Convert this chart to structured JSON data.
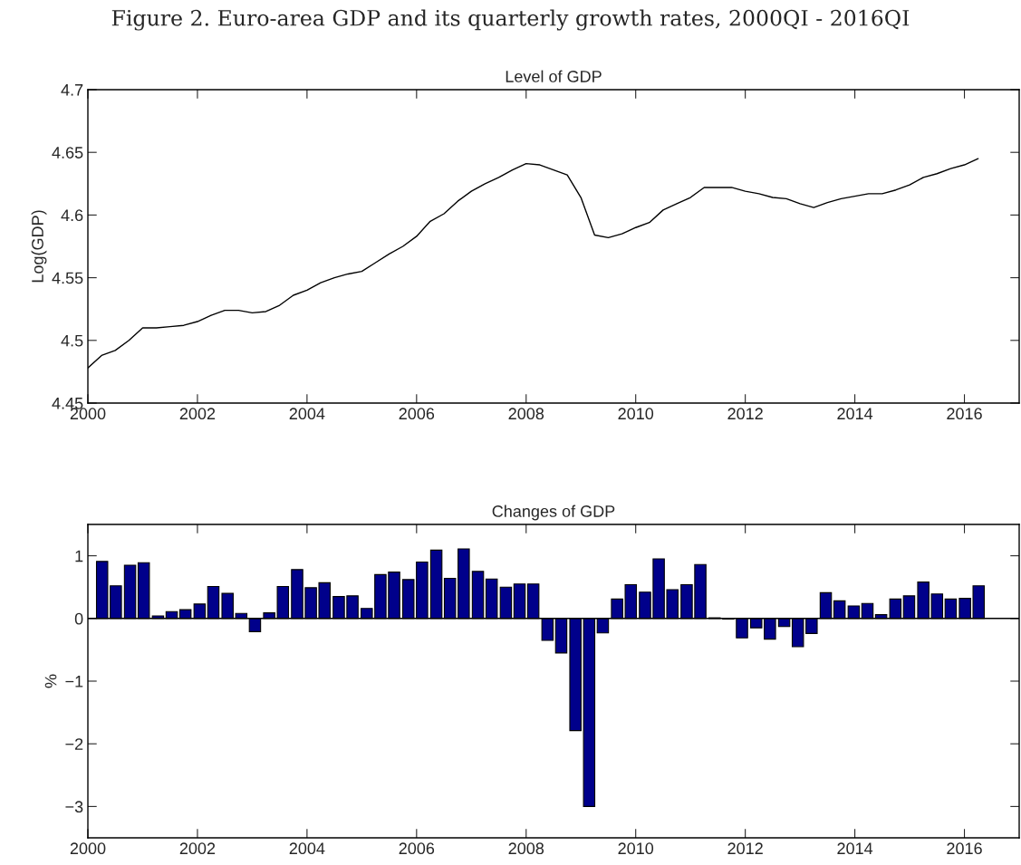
{
  "chart_data": [
    {
      "type": "line",
      "title": "Level of GDP",
      "ylabel": "Log(GDP)",
      "annotations": [
        "Figure 2. Euro-area GDP and its quarterly growth rates, 2000QI - 2016QI"
      ],
      "x": [
        2000,
        2000.25,
        2000.5,
        2000.75,
        2001,
        2001.25,
        2001.5,
        2001.75,
        2002,
        2002.25,
        2002.5,
        2002.75,
        2003,
        2003.25,
        2003.5,
        2003.75,
        2004,
        2004.25,
        2004.5,
        2004.75,
        2005,
        2005.25,
        2005.5,
        2005.75,
        2006,
        2006.25,
        2006.5,
        2006.75,
        2007,
        2007.25,
        2007.5,
        2007.75,
        2008,
        2008.25,
        2008.5,
        2008.75,
        2009,
        2009.25,
        2009.5,
        2009.75,
        2010,
        2010.25,
        2010.5,
        2010.75,
        2011,
        2011.25,
        2011.5,
        2011.75,
        2012,
        2012.25,
        2012.5,
        2012.75,
        2013,
        2013.25,
        2013.5,
        2013.75,
        2014,
        2014.25,
        2014.5,
        2014.75,
        2015,
        2015.25,
        2015.5,
        2015.75,
        2016,
        2016.25
      ],
      "series": [
        {
          "color": "#000000",
          "values": [
            4.478,
            4.488,
            4.492,
            4.5,
            4.51,
            4.51,
            4.511,
            4.512,
            4.515,
            4.52,
            4.524,
            4.524,
            4.522,
            4.523,
            4.528,
            4.536,
            4.54,
            4.546,
            4.55,
            4.553,
            4.555,
            4.562,
            4.569,
            4.575,
            4.583,
            4.595,
            4.601,
            4.611,
            4.619,
            4.625,
            4.63,
            4.636,
            4.641,
            4.64,
            4.636,
            4.632,
            4.614,
            4.584,
            4.582,
            4.585,
            4.59,
            4.594,
            4.604,
            4.609,
            4.614,
            4.622,
            4.622,
            4.622,
            4.619,
            4.617,
            4.614,
            4.613,
            4.609,
            4.606,
            4.61,
            4.613,
            4.615,
            4.617,
            4.617,
            4.62,
            4.624,
            4.63,
            4.633,
            4.637,
            4.64,
            4.645
          ]
        }
      ],
      "xlim": [
        2000,
        2017
      ],
      "xticks": [
        2000,
        2002,
        2004,
        2006,
        2008,
        2010,
        2012,
        2014,
        2016
      ],
      "ylim": [
        4.45,
        4.7
      ],
      "yticks": [
        4.45,
        4.5,
        4.55,
        4.6,
        4.65,
        4.7
      ],
      "grid": false,
      "legend": false
    },
    {
      "type": "bar",
      "title": "Changes of GDP",
      "ylabel": "%",
      "x": [
        2000.26,
        2000.51,
        2000.77,
        2001.02,
        2001.28,
        2001.53,
        2001.78,
        2002.04,
        2002.29,
        2002.55,
        2002.8,
        2003.05,
        2003.31,
        2003.56,
        2003.82,
        2004.07,
        2004.32,
        2004.58,
        2004.83,
        2005.09,
        2005.34,
        2005.59,
        2005.85,
        2006.1,
        2006.36,
        2006.61,
        2006.86,
        2007.12,
        2007.37,
        2007.63,
        2007.88,
        2008.13,
        2008.39,
        2008.64,
        2008.9,
        2009.15,
        2009.4,
        2009.66,
        2009.91,
        2010.17,
        2010.42,
        2010.67,
        2010.93,
        2011.18,
        2011.44,
        2011.69,
        2011.94,
        2012.2,
        2012.45,
        2012.71,
        2012.96,
        2013.21,
        2013.47,
        2013.72,
        2013.98,
        2014.23,
        2014.48,
        2014.74,
        2014.99,
        2015.25,
        2015.5,
        2015.75,
        2016.01,
        2016.26
      ],
      "series": [
        {
          "color": "#00008b",
          "values": [
            0.91,
            0.52,
            0.85,
            0.89,
            0.04,
            0.11,
            0.14,
            0.23,
            0.51,
            0.4,
            0.08,
            -0.21,
            0.09,
            0.51,
            0.78,
            0.49,
            0.57,
            0.35,
            0.36,
            0.16,
            0.7,
            0.74,
            0.62,
            0.9,
            1.09,
            0.64,
            1.11,
            0.75,
            0.63,
            0.5,
            0.55,
            0.55,
            -0.35,
            -0.55,
            -1.79,
            -3.0,
            -0.23,
            0.31,
            0.54,
            0.42,
            0.95,
            0.46,
            0.54,
            0.86,
            0.01,
            -0.01,
            -0.31,
            -0.15,
            -0.33,
            -0.13,
            -0.45,
            -0.24,
            0.41,
            0.28,
            0.2,
            0.24,
            0.06,
            0.31,
            0.36,
            0.58,
            0.39,
            0.31,
            0.32,
            0.52
          ]
        }
      ],
      "xlim": [
        2000,
        2017
      ],
      "xticks": [
        2000,
        2002,
        2004,
        2006,
        2008,
        2010,
        2012,
        2014,
        2016
      ],
      "ylim": [
        -3.5,
        1.5
      ],
      "yticks": [
        {
          "value": -3,
          "label": "−3"
        },
        {
          "value": -2,
          "label": "−2"
        },
        {
          "value": -1,
          "label": "−1"
        },
        0,
        1
      ],
      "ref_lines": [
        {
          "axis": "y",
          "value": 0,
          "color": "#000000"
        }
      ],
      "grid": false,
      "legend": false
    }
  ]
}
